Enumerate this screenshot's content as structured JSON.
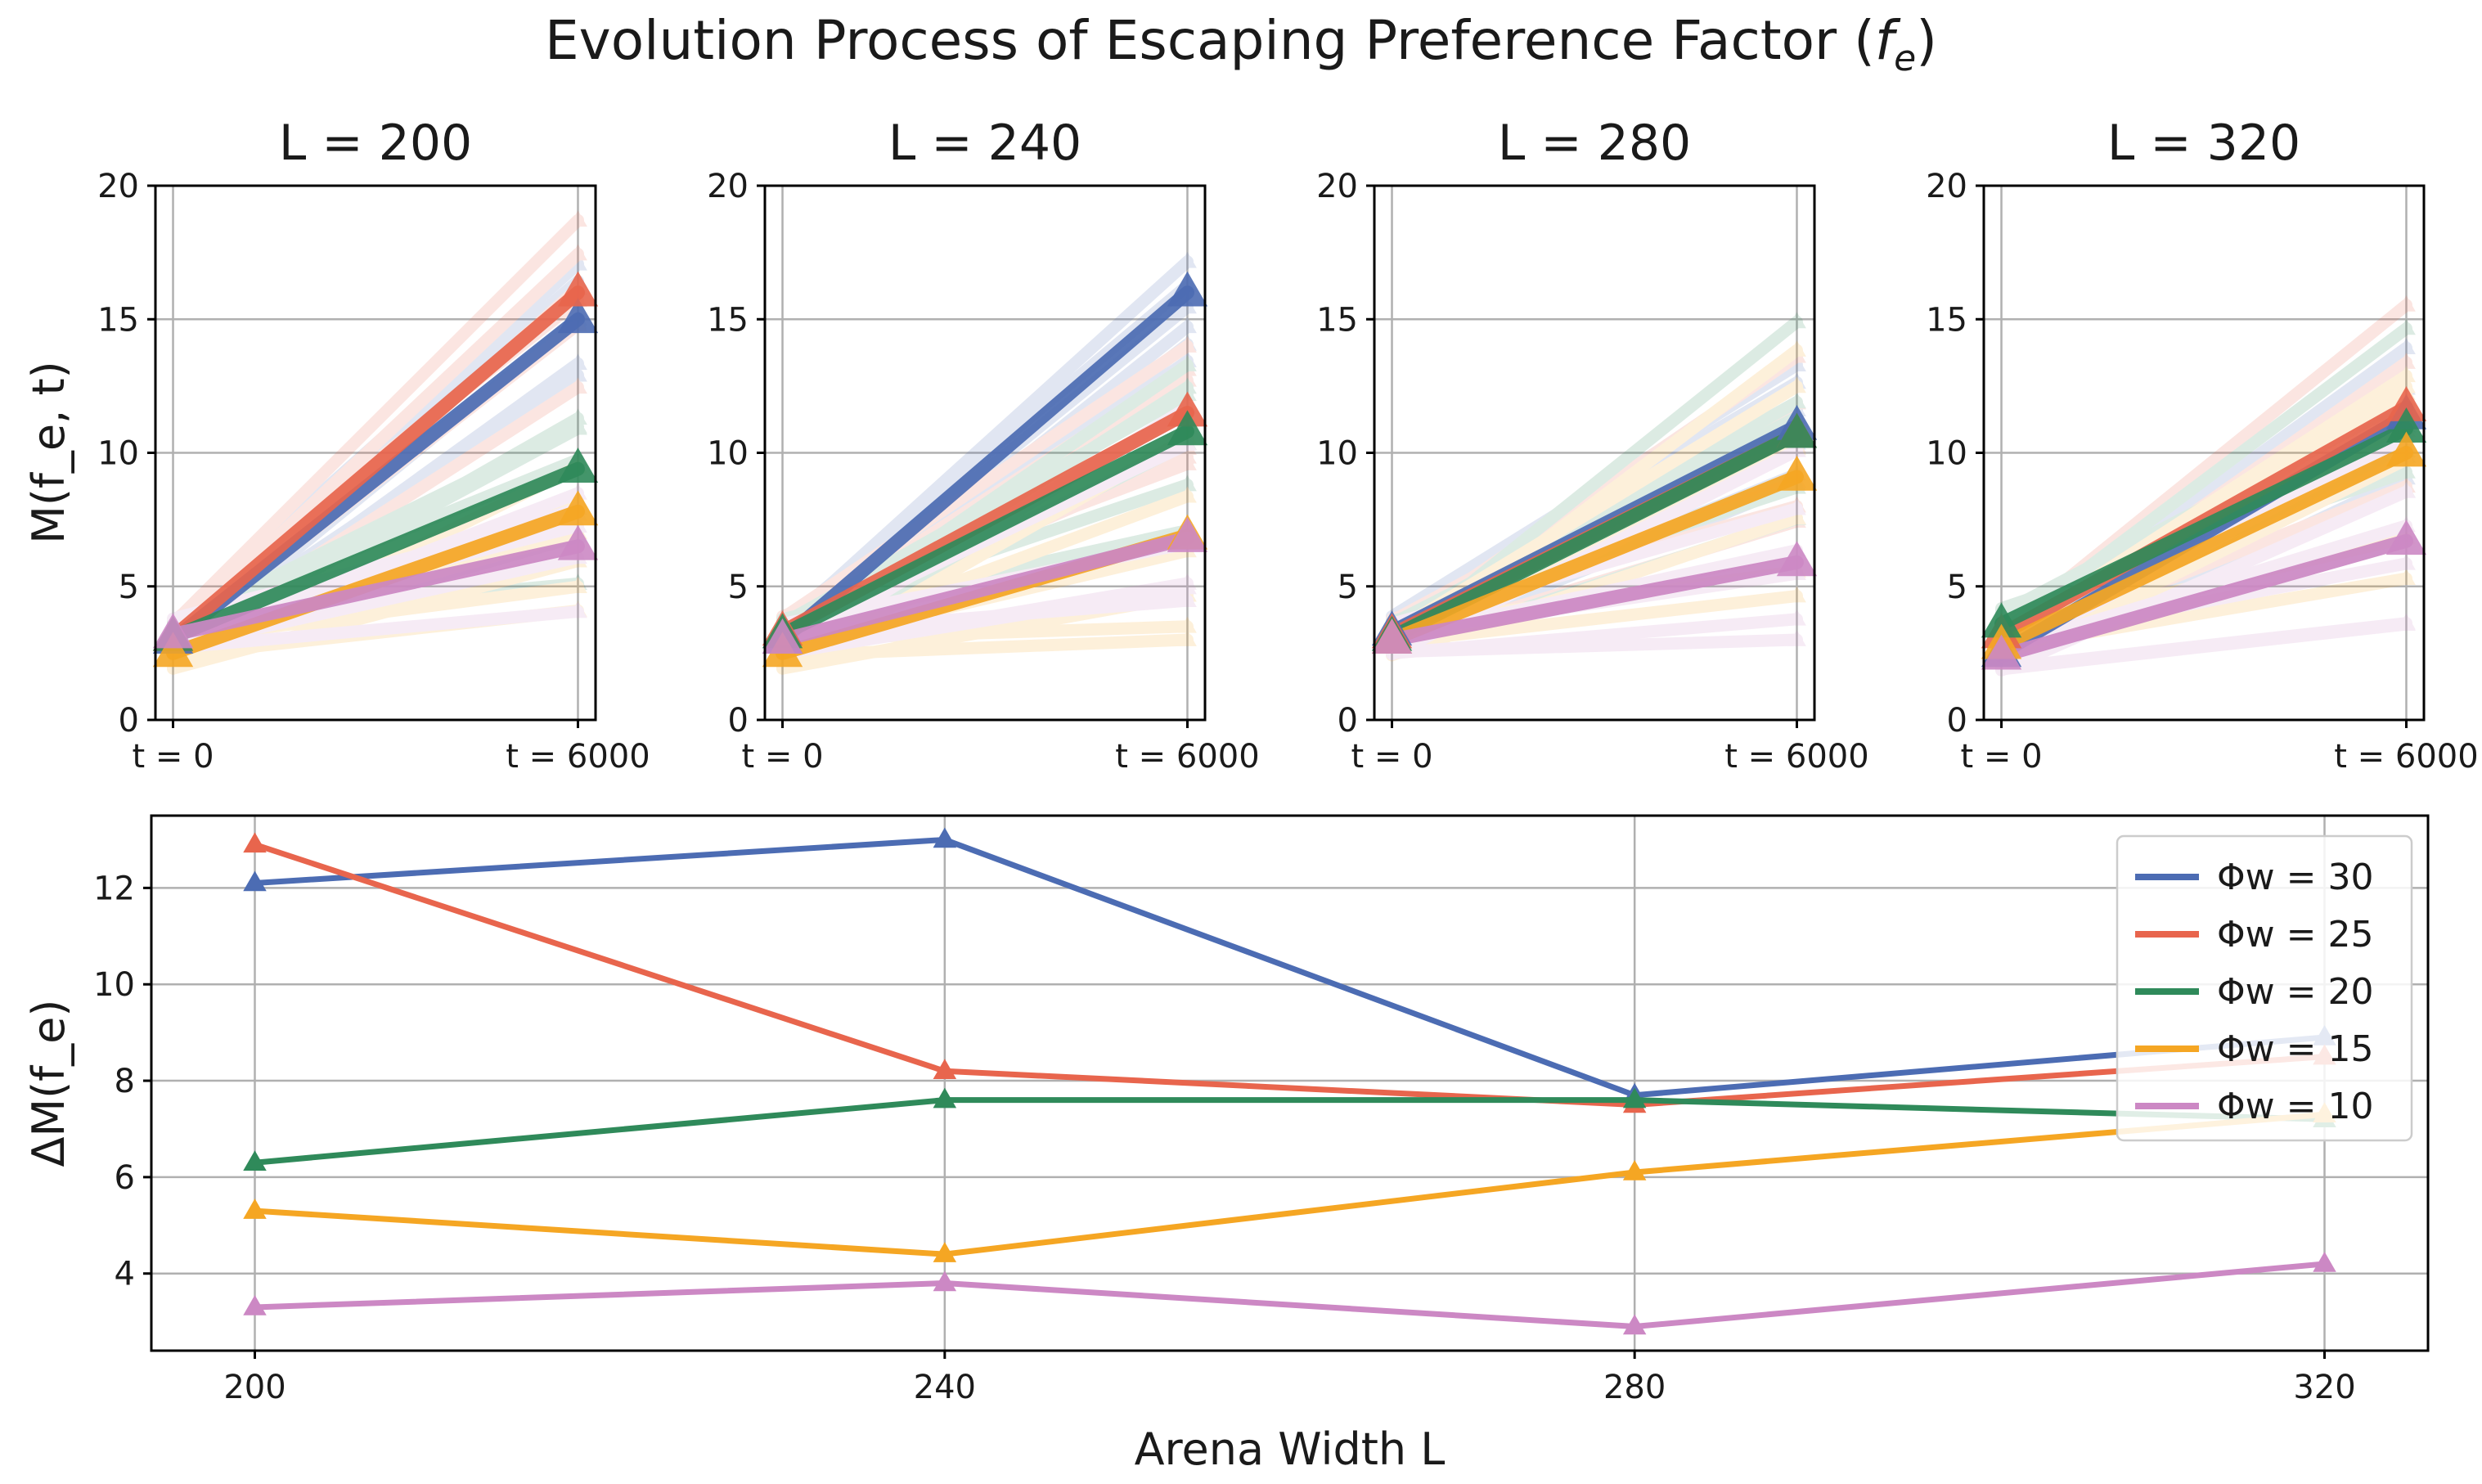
{
  "title": "Evolution Process of Escaping Preference Factor (f_e)",
  "colors": {
    "phi30": "#4c6cb3",
    "phi25": "#e8654d",
    "phi20": "#2f8a5a",
    "phi15": "#f5a623",
    "phi10": "#cc88c4",
    "grid": "#b0b0b0",
    "axis": "#000000"
  },
  "top_panels": {
    "ylabel": "M(f_e, t)",
    "yticks": [
      0,
      5,
      10,
      15,
      20
    ],
    "xticks": [
      "t = 0",
      "t = 6000"
    ]
  },
  "bottom_panel": {
    "ylabel": "ΔM(f_e)",
    "xlabel": "Arena Width L",
    "yticks": [
      4,
      6,
      8,
      10,
      12
    ],
    "xticks": [
      "200",
      "240",
      "280",
      "320"
    ]
  },
  "legend": [
    "Φw = 30",
    "Φw = 25",
    "Φw = 20",
    "Φw = 15",
    "Φw = 10"
  ],
  "chart_data": [
    {
      "type": "line",
      "title": "L = 200",
      "x": [
        0,
        6000
      ],
      "xlabel": "",
      "ylabel": "M(f_e, t)",
      "ylim": [
        0,
        20
      ],
      "series": [
        {
          "name": "Φw = 30",
          "values": [
            3.0,
            15.0
          ]
        },
        {
          "name": "Φw = 25",
          "values": [
            3.1,
            16.0
          ]
        },
        {
          "name": "Φw = 20",
          "values": [
            3.1,
            9.4
          ]
        },
        {
          "name": "Φw = 15",
          "values": [
            2.5,
            7.8
          ]
        },
        {
          "name": "Φw = 10",
          "values": [
            3.2,
            6.5
          ]
        }
      ]
    },
    {
      "type": "line",
      "title": "L = 240",
      "x": [
        0,
        6000
      ],
      "xlabel": "",
      "ylabel": "",
      "ylim": [
        0,
        20
      ],
      "series": [
        {
          "name": "Φw = 30",
          "values": [
            3.0,
            16.0
          ]
        },
        {
          "name": "Φw = 25",
          "values": [
            3.3,
            11.5
          ]
        },
        {
          "name": "Φw = 20",
          "values": [
            3.2,
            10.8
          ]
        },
        {
          "name": "Φw = 15",
          "values": [
            2.5,
            6.9
          ]
        },
        {
          "name": "Φw = 10",
          "values": [
            3.0,
            6.8
          ]
        }
      ]
    },
    {
      "type": "line",
      "title": "L = 280",
      "x": [
        0,
        6000
      ],
      "xlabel": "",
      "ylabel": "",
      "ylim": [
        0,
        20
      ],
      "series": [
        {
          "name": "Φw = 30",
          "values": [
            3.3,
            11.0
          ]
        },
        {
          "name": "Φw = 25",
          "values": [
            3.2,
            10.7
          ]
        },
        {
          "name": "Φw = 20",
          "values": [
            3.1,
            10.7
          ]
        },
        {
          "name": "Φw = 15",
          "values": [
            3.0,
            9.1
          ]
        },
        {
          "name": "Φw = 10",
          "values": [
            3.0,
            5.9
          ]
        }
      ]
    },
    {
      "type": "line",
      "title": "L = 320",
      "x": [
        0,
        6000
      ],
      "xlabel": "",
      "ylabel": "",
      "ylim": [
        0,
        20
      ],
      "series": [
        {
          "name": "Φw = 30",
          "values": [
            2.5,
            11.4
          ]
        },
        {
          "name": "Φw = 25",
          "values": [
            3.2,
            11.7
          ]
        },
        {
          "name": "Φw = 20",
          "values": [
            3.6,
            10.9
          ]
        },
        {
          "name": "Φw = 15",
          "values": [
            2.8,
            10.0
          ]
        },
        {
          "name": "Φw = 10",
          "values": [
            2.4,
            6.7
          ]
        }
      ]
    },
    {
      "type": "line",
      "title": "",
      "x": [
        200,
        240,
        280,
        320
      ],
      "xlabel": "Arena Width L",
      "ylabel": "ΔM(f_e)",
      "ylim": [
        2.4,
        13.5
      ],
      "xlim": [
        194,
        326
      ],
      "grid": true,
      "legend": "top-right",
      "series": [
        {
          "name": "Φw = 30",
          "values": [
            12.1,
            13.0,
            7.7,
            8.9
          ]
        },
        {
          "name": "Φw = 25",
          "values": [
            12.9,
            8.2,
            7.5,
            8.5
          ]
        },
        {
          "name": "Φw = 20",
          "values": [
            6.3,
            7.6,
            7.6,
            7.2
          ]
        },
        {
          "name": "Φw = 15",
          "values": [
            5.3,
            4.4,
            6.1,
            7.3
          ]
        },
        {
          "name": "Φw = 10",
          "values": [
            3.3,
            3.8,
            2.9,
            4.2
          ]
        }
      ]
    }
  ]
}
